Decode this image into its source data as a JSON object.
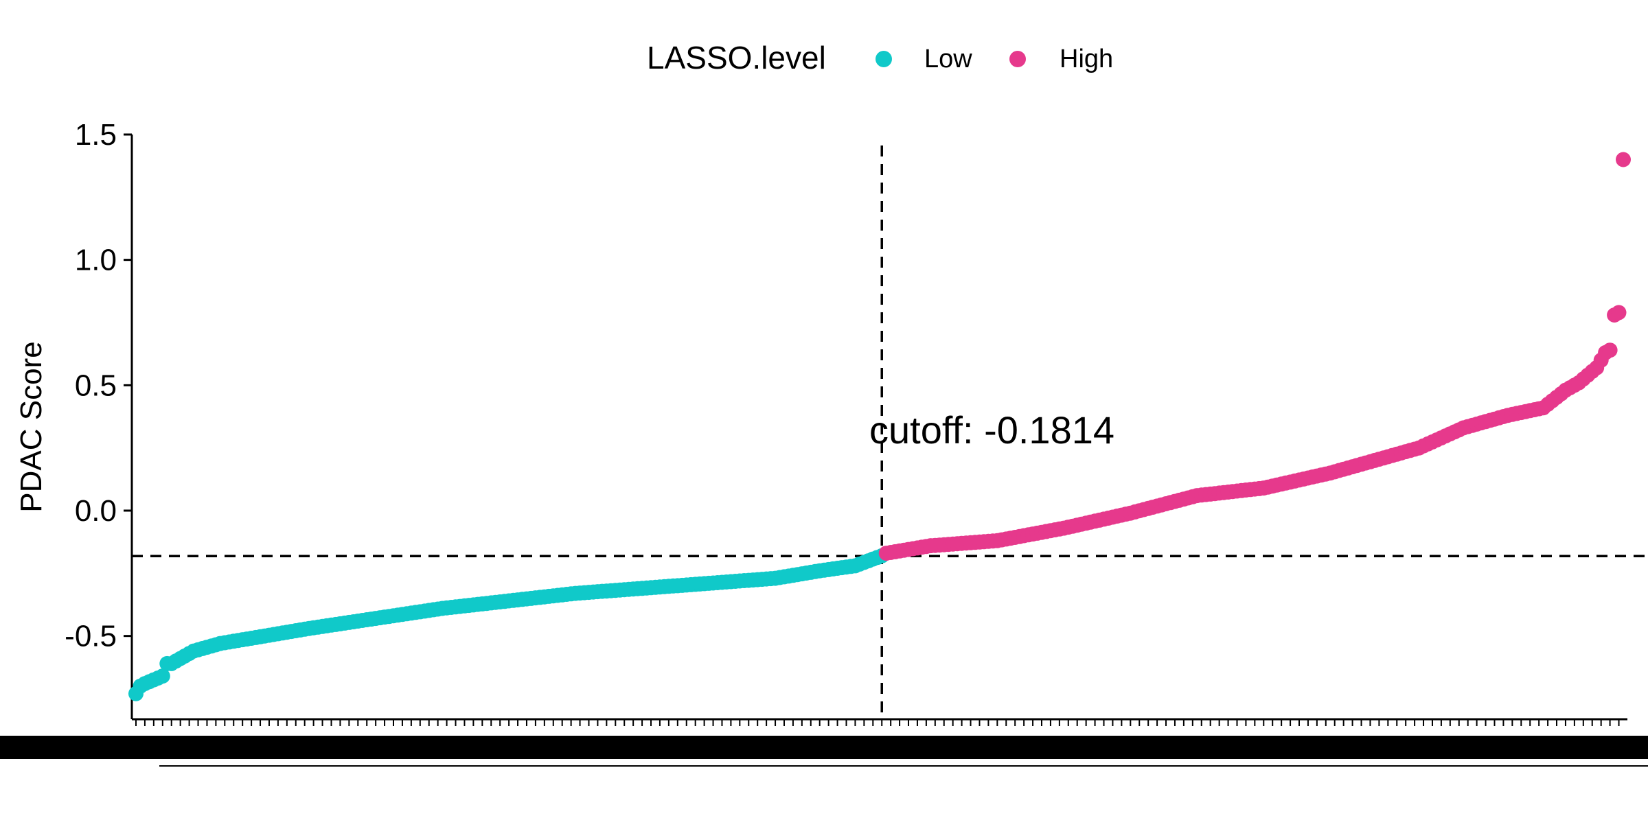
{
  "chart_data": {
    "type": "scatter",
    "ylabel": "PDAC Score",
    "xlabel": "",
    "ylim": [
      -0.83,
      1.5
    ],
    "yticks": [
      1.5,
      1.0,
      0.5,
      0.0,
      -0.5
    ],
    "ytick_labels": [
      "1.5",
      "1.0",
      "0.5",
      "0.0",
      "-0.5"
    ],
    "n_points": 336,
    "cutoff": -0.1814,
    "cutoff_label": "cutoff: -0.1814",
    "cutoff_x_index": 169,
    "legend": {
      "title": "LASSO.level",
      "position": "top",
      "items": [
        {
          "label": "Low",
          "color": "#10C9C9"
        },
        {
          "label": "High",
          "color": "#E6398C"
        }
      ]
    },
    "series": [
      {
        "name": "Low",
        "color": "#10C9C9",
        "anchors_index": [
          1,
          2,
          3,
          7,
          8,
          9,
          10,
          14,
          20,
          30,
          40,
          55,
          70,
          85,
          100,
          115,
          130,
          145,
          155,
          163,
          169
        ],
        "anchors_value": [
          -0.73,
          -0.7,
          -0.69,
          -0.66,
          -0.61,
          -0.61,
          -0.6,
          -0.56,
          -0.53,
          -0.5,
          -0.47,
          -0.43,
          -0.39,
          -0.36,
          -0.33,
          -0.31,
          -0.29,
          -0.27,
          -0.24,
          -0.22,
          -0.18
        ]
      },
      {
        "name": "High",
        "color": "#E6398C",
        "anchors_index": [
          170,
          180,
          195,
          210,
          225,
          240,
          255,
          270,
          280,
          290,
          300,
          310,
          318,
          323,
          326,
          328,
          330,
          331,
          332,
          333,
          334,
          335,
          336
        ],
        "anchors_value": [
          -0.17,
          -0.14,
          -0.12,
          -0.07,
          -0.01,
          0.06,
          0.09,
          0.15,
          0.2,
          0.25,
          0.33,
          0.38,
          0.41,
          0.48,
          0.51,
          0.54,
          0.57,
          0.6,
          0.63,
          0.64,
          0.78,
          0.79,
          1.4
        ]
      }
    ]
  }
}
